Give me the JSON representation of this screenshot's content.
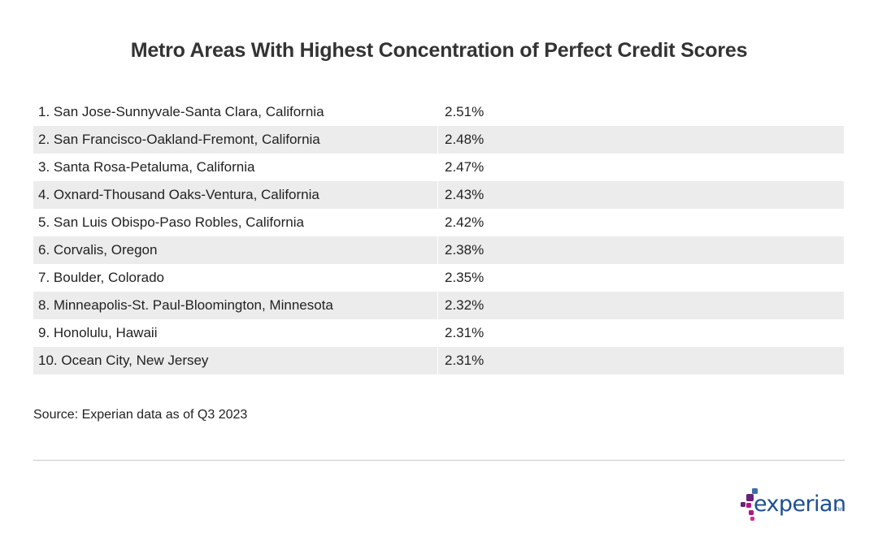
{
  "chart_data": {
    "type": "table",
    "title": "Metro Areas With Highest Concentration of Perfect Credit Scores",
    "rows": [
      {
        "label": "1. San Jose-Sunnyvale-Santa Clara, California",
        "value": "2.51%"
      },
      {
        "label": "2. San Francisco-Oakland-Fremont, California",
        "value": "2.48%"
      },
      {
        "label": "3. Santa Rosa-Petaluma, California",
        "value": "2.47%"
      },
      {
        "label": "4. Oxnard-Thousand Oaks-Ventura, California",
        "value": "2.43%"
      },
      {
        "label": "5. San Luis Obispo-Paso Robles, California",
        "value": "2.42%"
      },
      {
        "label": "6. Corvalis, Oregon",
        "value": "2.38%"
      },
      {
        "label": "7. Boulder, Colorado",
        "value": "2.35%"
      },
      {
        "label": "8. Minneapolis-St. Paul-Bloomington, Minnesota",
        "value": "2.32%"
      },
      {
        "label": "9. Honolulu, Hawaii",
        "value": "2.31%"
      },
      {
        "label": "10. Ocean City, New Jersey",
        "value": "2.31%"
      }
    ],
    "source": "Source: Experian data as of Q3 2023"
  },
  "logo": {
    "text": "experian",
    "tm": "TM"
  },
  "colors": {
    "stripe": "#ececec",
    "brand_blue": "#1d4f91",
    "brand_purple": "#6d2077",
    "brand_magenta": "#af1685",
    "brand_light_blue": "#426da9"
  }
}
